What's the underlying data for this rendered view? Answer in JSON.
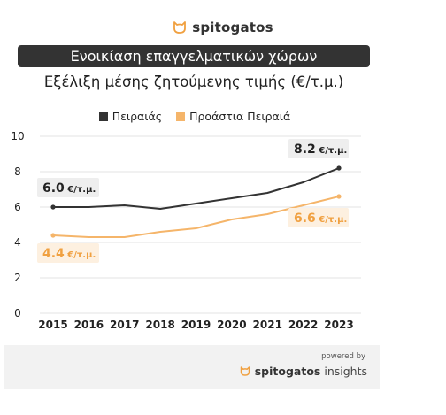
{
  "brand": {
    "name": "spitogatos",
    "icon": "cat-head-icon",
    "color": "#f0a040"
  },
  "header": {
    "title": "Ενοικίαση επαγγελματικών χώρων",
    "subtitle": "Εξέλιξη μέσης ζητούμενης τιμής (€/τ.μ.)"
  },
  "legend": [
    {
      "label": "Πειραιάς",
      "color": "#333333"
    },
    {
      "label": "Προάστια Πειραιά",
      "color": "#f5b56a"
    }
  ],
  "chart_data": {
    "type": "line",
    "x": [
      "2015",
      "2016",
      "2017",
      "2018",
      "2019",
      "2020",
      "2021",
      "2022",
      "2023"
    ],
    "ylim": [
      0,
      10
    ],
    "yticks": [
      "0",
      "2",
      "4",
      "6",
      "8",
      "10"
    ],
    "grid": true,
    "series": [
      {
        "name": "Πειραιάς",
        "color": "#333333",
        "values": [
          6.0,
          6.0,
          6.1,
          5.9,
          6.2,
          6.5,
          6.8,
          7.4,
          8.2
        ]
      },
      {
        "name": "Προάστια Πειραιά",
        "color": "#f5b56a",
        "values": [
          4.4,
          4.3,
          4.3,
          4.6,
          4.8,
          5.3,
          5.6,
          6.1,
          6.6
        ]
      }
    ],
    "annotations": [
      {
        "series": 0,
        "point": "first",
        "value": "6.0",
        "unit": "€/τ.μ."
      },
      {
        "series": 0,
        "point": "last",
        "value": "8.2",
        "unit": "€/τ.μ."
      },
      {
        "series": 1,
        "point": "first",
        "value": "4.4",
        "unit": "€/τ.μ."
      },
      {
        "series": 1,
        "point": "last",
        "value": "6.6",
        "unit": "€/τ.μ."
      }
    ]
  },
  "footer": {
    "powered_by": "powered by",
    "brand_bold": "spitogatos",
    "brand_light": "insights"
  }
}
